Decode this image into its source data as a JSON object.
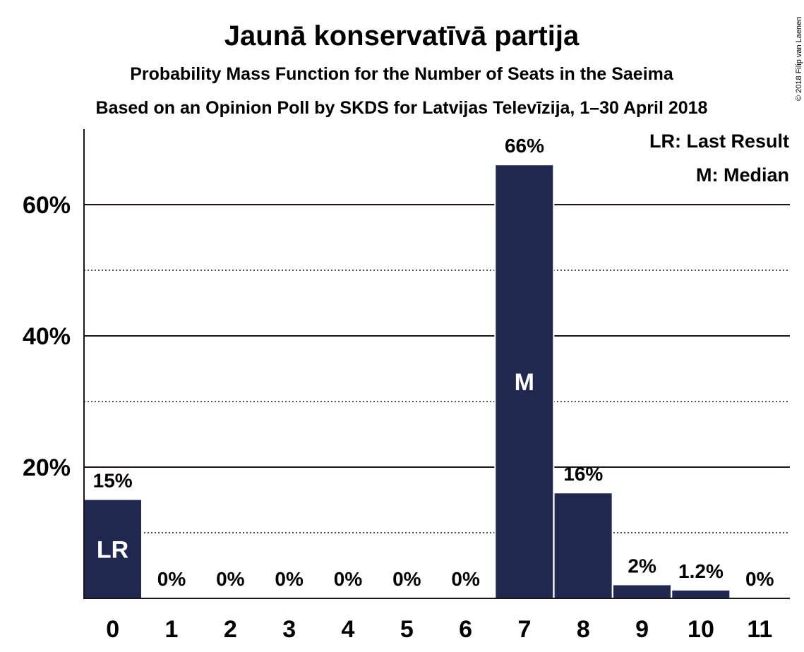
{
  "chart_data": {
    "type": "bar",
    "title": "Jaunā konservatīvā partija",
    "subtitle": "Probability Mass Function for the Number of Seats in the Saeima",
    "subtitle2": "Based on an Opinion Poll by SKDS for Latvijas Televīzija, 1–30 April 2018",
    "categories": [
      "0",
      "1",
      "2",
      "3",
      "4",
      "5",
      "6",
      "7",
      "8",
      "9",
      "10",
      "11"
    ],
    "values": [
      15,
      0,
      0,
      0,
      0,
      0,
      0,
      66,
      16,
      2,
      1.2,
      0
    ],
    "value_labels": [
      "15%",
      "0%",
      "0%",
      "0%",
      "0%",
      "0%",
      "0%",
      "66%",
      "16%",
      "2%",
      "1.2%",
      "0%"
    ],
    "bar_marks": [
      {
        "index": 0,
        "label": "LR"
      },
      {
        "index": 7,
        "label": "M"
      }
    ],
    "yticks": [
      20,
      40,
      60
    ],
    "ytick_labels": [
      "20%",
      "40%",
      "60%"
    ],
    "yminor": [
      10,
      30,
      50
    ],
    "ylim": [
      0,
      72
    ],
    "xlabel": "",
    "ylabel": "",
    "legend": [
      "LR: Last Result",
      "M: Median"
    ],
    "legend_position": "top-right",
    "grid": true,
    "bar_color": "#212850",
    "copyright": "© 2018 Filip van Laenen"
  }
}
